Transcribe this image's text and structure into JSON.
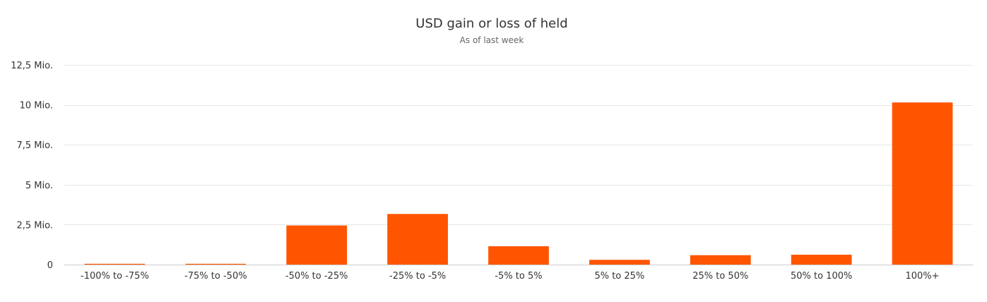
{
  "chart_data": {
    "type": "bar",
    "title": "USD gain or loss of held",
    "subtitle": "As of last week",
    "categories": [
      "-100% to -75%",
      "-75% to -50%",
      "-50% to -25%",
      "-25% to -5%",
      "-5% to 5%",
      "5% to 25%",
      "25% to 50%",
      "50% to 100%",
      "100%+"
    ],
    "values": [
      50000,
      50000,
      2450000,
      3170000,
      1150000,
      300000,
      590000,
      620000,
      10150000
    ],
    "y_ticks": [
      0,
      2500000,
      5000000,
      7500000,
      10000000,
      12500000
    ],
    "y_tick_labels": [
      "0",
      "2,5 Mio.",
      "5 Mio.",
      "7,5 Mio.",
      "10 Mio.",
      "12,5 Mio."
    ],
    "ylim": [
      0,
      12500000
    ],
    "grid": true,
    "colors": {
      "bar": "#ff5500",
      "grid": "#e6e6e6",
      "title": "#333333",
      "subtitle": "#666666",
      "axis_text": "#333333"
    }
  }
}
